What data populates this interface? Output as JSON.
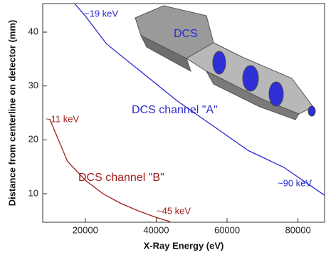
{
  "chart_data": {
    "type": "line",
    "x_label": "X-Ray Energy (eV)",
    "y_label": "Distance from centerline on detector (mm)",
    "xlim": [
      8000,
      87500
    ],
    "ylim": [
      4.7,
      45.3
    ],
    "xticks": [
      20000,
      40000,
      60000,
      80000
    ],
    "yticks": [
      10,
      20,
      30,
      40
    ],
    "series": [
      {
        "name": "DCS channel \"A\"",
        "color": "#2a2ad0",
        "x": [
          17000,
          20000,
          26000,
          36000,
          46000,
          56000,
          66000,
          76000,
          87500
        ],
        "values": [
          45.3,
          43,
          37.8,
          32.5,
          27.2,
          22.6,
          18,
          14.9,
          9.7
        ]
      },
      {
        "name": "DCS channel \"B\"",
        "color": "#a02020",
        "x": [
          10000,
          15000,
          20000,
          25000,
          30000,
          35000,
          40000,
          44000
        ],
        "values": [
          23.8,
          16,
          12.5,
          10,
          8.2,
          6.8,
          5.6,
          4.8
        ]
      }
    ],
    "annotations": [
      {
        "text": "~19 keV",
        "color": "#2a2ad0"
      },
      {
        "text": "DCS",
        "color": "#2a2ad0"
      },
      {
        "text": "~90 keV",
        "color": "#2a2ad0"
      },
      {
        "text": "~11 keV",
        "color": "#a02020"
      },
      {
        "text": "~45 keV",
        "color": "#a02020"
      }
    ]
  }
}
